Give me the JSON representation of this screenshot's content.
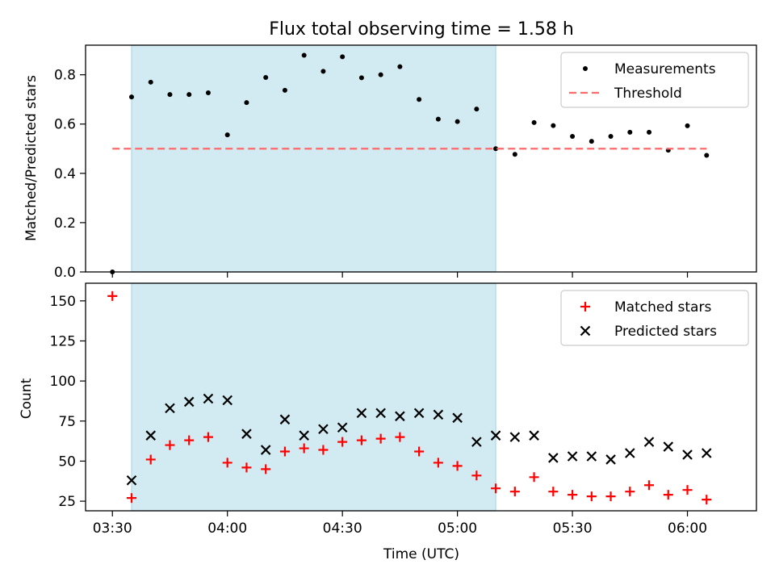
{
  "chart_data": [
    {
      "type": "scatter",
      "title": "Flux total observing time = 1.58 h",
      "xlabel": "",
      "ylabel": "Matched/Predicted stars",
      "ylim": [
        0,
        0.92
      ],
      "yticks": [
        "0.0",
        "0.2",
        "0.4",
        "0.6",
        "0.8"
      ],
      "shaded_interval": [
        "03:35",
        "05:10"
      ],
      "shade_color": "#add8e6",
      "legend_position": "top-right",
      "series": [
        {
          "name": "Measurements",
          "marker": "dot",
          "color": "#000000",
          "x": [
            "03:30",
            "03:35",
            "03:40",
            "03:45",
            "03:50",
            "03:55",
            "04:00",
            "04:05",
            "04:10",
            "04:15",
            "04:20",
            "04:25",
            "04:30",
            "04:35",
            "04:40",
            "04:45",
            "04:50",
            "04:55",
            "05:00",
            "05:05",
            "05:10",
            "05:15",
            "05:20",
            "05:25",
            "05:30",
            "05:35",
            "05:40",
            "05:45",
            "05:50",
            "05:55",
            "06:00",
            "06:05"
          ],
          "values": [
            0.0,
            0.71,
            0.77,
            0.72,
            0.72,
            0.727,
            0.556,
            0.687,
            0.789,
            0.737,
            0.879,
            0.814,
            0.873,
            0.788,
            0.8,
            0.833,
            0.7,
            0.62,
            0.61,
            0.661,
            0.5,
            0.477,
            0.606,
            0.594,
            0.55,
            0.53,
            0.55,
            0.567,
            0.567,
            0.494,
            0.593,
            0.473
          ]
        },
        {
          "name": "Threshold",
          "marker": "dashed-line",
          "color": "#ff6b6b",
          "x": [
            "03:30",
            "06:05"
          ],
          "values": [
            0.5,
            0.5
          ]
        }
      ]
    },
    {
      "type": "scatter",
      "title": "",
      "xlabel": "Time (UTC)",
      "ylabel": "Count",
      "ylim": [
        19,
        161
      ],
      "yticks": [
        "25",
        "50",
        "75",
        "100",
        "125",
        "150"
      ],
      "xticks": [
        "03:30",
        "04:00",
        "04:30",
        "05:00",
        "05:30",
        "06:00"
      ],
      "xlim": [
        "03:23",
        "06:18"
      ],
      "shaded_interval": [
        "03:35",
        "05:10"
      ],
      "shade_color": "#add8e6",
      "legend_position": "top-right",
      "series": [
        {
          "name": "Matched stars",
          "marker": "plus",
          "color": "#ff0000",
          "x": [
            "03:30",
            "03:35",
            "03:40",
            "03:45",
            "03:50",
            "03:55",
            "04:00",
            "04:05",
            "04:10",
            "04:15",
            "04:20",
            "04:25",
            "04:30",
            "04:35",
            "04:40",
            "04:45",
            "04:50",
            "04:55",
            "05:00",
            "05:05",
            "05:10",
            "05:15",
            "05:20",
            "05:25",
            "05:30",
            "05:35",
            "05:40",
            "05:45",
            "05:50",
            "05:55",
            "06:00",
            "06:05"
          ],
          "values": [
            153,
            27,
            51,
            60,
            63,
            65,
            49,
            46,
            45,
            56,
            58,
            57,
            62,
            63,
            64,
            65,
            56,
            49,
            47,
            41,
            33,
            31,
            40,
            31,
            29,
            28,
            28,
            31,
            35,
            29,
            32,
            26
          ]
        },
        {
          "name": "Predicted stars",
          "marker": "x",
          "color": "#000000",
          "x": [
            "03:35",
            "03:40",
            "03:45",
            "03:50",
            "03:55",
            "04:00",
            "04:05",
            "04:10",
            "04:15",
            "04:20",
            "04:25",
            "04:30",
            "04:35",
            "04:40",
            "04:45",
            "04:50",
            "04:55",
            "05:00",
            "05:05",
            "05:10",
            "05:15",
            "05:20",
            "05:25",
            "05:30",
            "05:35",
            "05:40",
            "05:45",
            "05:50",
            "05:55",
            "06:00",
            "06:05"
          ],
          "values": [
            38,
            66,
            83,
            87,
            89,
            88,
            67,
            57,
            76,
            66,
            70,
            71,
            80,
            80,
            78,
            80,
            79,
            77,
            62,
            66,
            65,
            66,
            52,
            53,
            53,
            51,
            55,
            62,
            59,
            54,
            55
          ]
        }
      ]
    }
  ]
}
